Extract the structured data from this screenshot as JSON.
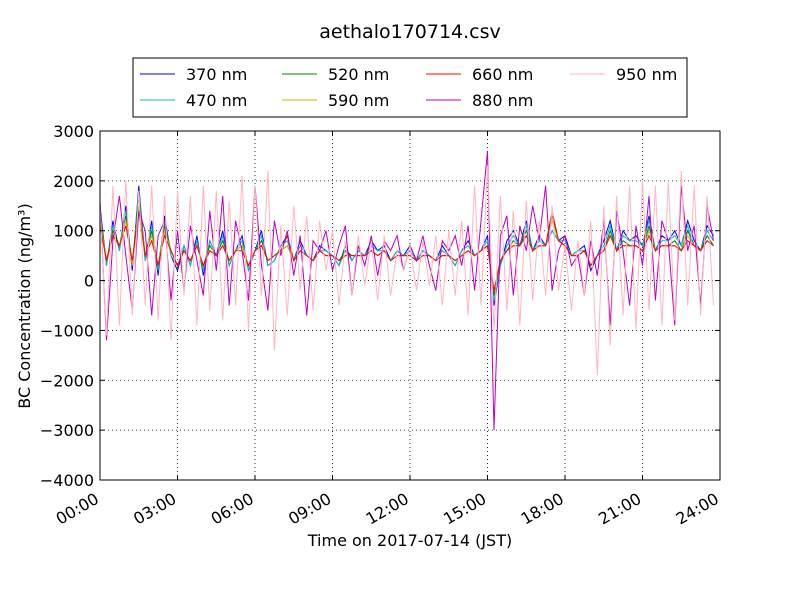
{
  "chart_data": {
    "type": "line",
    "title": "aethalo170714.csv",
    "xlabel": "Time on 2017-07-14 (JST)",
    "ylabel": "BC Concentration (ng/m³)",
    "xlim": [
      "00:00",
      "24:00"
    ],
    "ylim": [
      -4000,
      3000
    ],
    "x_ticks": [
      "00:00",
      "03:00",
      "06:00",
      "09:00",
      "12:00",
      "15:00",
      "18:00",
      "21:00",
      "24:00"
    ],
    "y_ticks": [
      -4000,
      -3000,
      -2000,
      -1000,
      0,
      1000,
      2000,
      3000
    ],
    "grid": true,
    "legend_position": "top-center",
    "x_hours": [
      0,
      0.25,
      0.5,
      0.75,
      1,
      1.25,
      1.5,
      1.75,
      2,
      2.25,
      2.5,
      2.75,
      3,
      3.25,
      3.5,
      3.75,
      4,
      4.25,
      4.5,
      4.75,
      5,
      5.25,
      5.5,
      5.75,
      6,
      6.25,
      6.5,
      6.75,
      7,
      7.25,
      7.5,
      7.75,
      8,
      8.25,
      8.5,
      8.75,
      9,
      9.25,
      9.5,
      9.75,
      10,
      10.25,
      10.5,
      10.75,
      11,
      11.25,
      11.5,
      11.75,
      12,
      12.25,
      12.5,
      12.75,
      13,
      13.25,
      13.5,
      13.75,
      14,
      14.25,
      14.5,
      14.75,
      15,
      15.25,
      15.5,
      15.75,
      16,
      16.25,
      16.5,
      16.75,
      17,
      17.25,
      17.5,
      17.75,
      18,
      18.25,
      18.5,
      18.75,
      19,
      19.25,
      19.5,
      19.75,
      20,
      20.25,
      20.5,
      20.75,
      21,
      21.25,
      21.5,
      21.75,
      22,
      22.25,
      22.5,
      22.75,
      23,
      23.25,
      23.5,
      23.75
    ],
    "series": [
      {
        "name": "370 nm",
        "color": "#0000ff",
        "values": [
          1500,
          300,
          1200,
          600,
          1500,
          200,
          1900,
          400,
          1200,
          100,
          1300,
          500,
          200,
          700,
          300,
          900,
          100,
          800,
          500,
          1000,
          300,
          600,
          900,
          200,
          600,
          1000,
          300,
          400,
          700,
          900,
          400,
          800,
          500,
          400,
          700,
          600,
          500,
          300,
          700,
          400,
          600,
          500,
          800,
          600,
          700,
          400,
          600,
          500,
          700,
          400,
          600,
          500,
          400,
          700,
          500,
          300,
          600,
          800,
          500,
          600,
          900,
          -500,
          300,
          800,
          1000,
          700,
          1200,
          600,
          900,
          700,
          1000,
          800,
          900,
          500,
          600,
          700,
          200,
          500,
          800,
          1200,
          600,
          1000,
          800,
          900,
          700,
          1300,
          600,
          900,
          800,
          1000,
          700,
          1200,
          800,
          600,
          1100,
          900
        ]
      },
      {
        "name": "470 nm",
        "color": "#00bfbf",
        "values": [
          1400,
          300,
          1100,
          600,
          1400,
          300,
          1800,
          400,
          1100,
          200,
          1200,
          500,
          300,
          700,
          300,
          800,
          200,
          800,
          500,
          900,
          300,
          600,
          800,
          200,
          600,
          900,
          300,
          400,
          700,
          800,
          400,
          700,
          500,
          400,
          600,
          600,
          500,
          300,
          600,
          400,
          600,
          500,
          700,
          600,
          600,
          400,
          600,
          500,
          600,
          400,
          600,
          500,
          400,
          600,
          500,
          300,
          600,
          700,
          500,
          600,
          800,
          -400,
          300,
          700,
          900,
          700,
          1100,
          600,
          800,
          700,
          1000,
          800,
          800,
          500,
          600,
          600,
          300,
          500,
          700,
          1100,
          600,
          900,
          800,
          800,
          700,
          1200,
          600,
          800,
          800,
          900,
          700,
          1100,
          700,
          600,
          1000,
          800
        ]
      },
      {
        "name": "520 nm",
        "color": "#008000",
        "values": [
          1300,
          400,
          1000,
          700,
          1300,
          300,
          1700,
          500,
          1000,
          300,
          1100,
          600,
          300,
          600,
          400,
          700,
          300,
          700,
          500,
          800,
          400,
          600,
          700,
          300,
          600,
          800,
          400,
          500,
          600,
          700,
          400,
          600,
          500,
          400,
          600,
          500,
          500,
          400,
          600,
          500,
          500,
          500,
          600,
          500,
          600,
          400,
          500,
          500,
          500,
          400,
          500,
          500,
          400,
          500,
          500,
          400,
          500,
          600,
          500,
          600,
          700,
          -300,
          400,
          600,
          800,
          700,
          1000,
          600,
          700,
          700,
          1300,
          800,
          700,
          500,
          500,
          600,
          300,
          500,
          600,
          1000,
          600,
          800,
          700,
          700,
          600,
          1100,
          600,
          700,
          700,
          800,
          600,
          1000,
          700,
          600,
          900,
          700
        ]
      },
      {
        "name": "590 nm",
        "color": "#bfbf00",
        "values": [
          1200,
          400,
          900,
          700,
          1200,
          300,
          1500,
          500,
          900,
          300,
          1000,
          600,
          300,
          600,
          400,
          700,
          300,
          600,
          500,
          700,
          400,
          600,
          700,
          300,
          600,
          700,
          400,
          500,
          600,
          700,
          400,
          600,
          500,
          400,
          600,
          500,
          500,
          400,
          500,
          500,
          500,
          500,
          600,
          500,
          600,
          400,
          500,
          500,
          500,
          400,
          500,
          500,
          400,
          500,
          500,
          400,
          500,
          600,
          500,
          600,
          700,
          -200,
          400,
          600,
          700,
          700,
          900,
          600,
          700,
          700,
          1200,
          800,
          700,
          500,
          500,
          600,
          300,
          500,
          600,
          900,
          600,
          700,
          700,
          700,
          600,
          1000,
          600,
          700,
          700,
          700,
          600,
          900,
          700,
          600,
          800,
          700
        ]
      },
      {
        "name": "660 nm",
        "color": "#ff0000",
        "values": [
          1100,
          400,
          900,
          700,
          1100,
          400,
          1400,
          500,
          800,
          300,
          900,
          600,
          300,
          600,
          400,
          700,
          300,
          600,
          500,
          700,
          400,
          600,
          600,
          300,
          600,
          700,
          400,
          500,
          600,
          900,
          400,
          600,
          500,
          400,
          600,
          500,
          500,
          400,
          500,
          500,
          500,
          500,
          600,
          500,
          600,
          400,
          500,
          500,
          500,
          400,
          500,
          500,
          400,
          500,
          500,
          400,
          500,
          600,
          500,
          600,
          700,
          -200,
          400,
          600,
          700,
          700,
          900,
          600,
          700,
          700,
          1400,
          800,
          700,
          500,
          500,
          600,
          300,
          500,
          600,
          900,
          600,
          700,
          700,
          700,
          600,
          900,
          600,
          700,
          700,
          700,
          600,
          800,
          700,
          600,
          800,
          700
        ]
      },
      {
        "name": "880 nm",
        "color": "#bf00bf",
        "values": [
          1600,
          -1200,
          800,
          1700,
          500,
          -600,
          1400,
          1000,
          -700,
          900,
          1200,
          -400,
          1000,
          -200,
          1100,
          400,
          -300,
          1400,
          200,
          1700,
          -500,
          1200,
          600,
          -400,
          1900,
          300,
          -600,
          1200,
          500,
          1000,
          100,
          900,
          -700,
          800,
          600,
          1000,
          200,
          700,
          1100,
          -300,
          700,
          300,
          900,
          100,
          800,
          600,
          900,
          200,
          700,
          400,
          900,
          300,
          -200,
          800,
          600,
          900,
          300,
          1100,
          -200,
          1200,
          2600,
          -3000,
          900,
          1300,
          -300,
          1100,
          600,
          1500,
          800,
          1900,
          -200,
          600,
          900,
          300,
          500,
          -300,
          800,
          100,
          1200,
          -900,
          1400,
          600,
          -500,
          1100,
          300,
          1700,
          -400,
          1200,
          800,
          -900,
          1900,
          600,
          1100,
          -500,
          1500,
          800
        ]
      },
      {
        "name": "950 nm",
        "color": "#ffb6c1",
        "values": [
          1500,
          -1100,
          1900,
          -900,
          2000,
          -700,
          1800,
          -500,
          1900,
          -800,
          1700,
          -1200,
          1800,
          -300,
          1700,
          -900,
          1900,
          -600,
          1800,
          -800,
          1600,
          -500,
          2100,
          -1000,
          1900,
          -300,
          2200,
          -1400,
          1100,
          -700,
          1500,
          -200,
          1300,
          -600,
          1200,
          200,
          1000,
          -500,
          800,
          -300,
          900,
          -100,
          800,
          -400,
          900,
          -300,
          600,
          200,
          700,
          -200,
          800,
          -100,
          900,
          -500,
          1000,
          -300,
          1200,
          -700,
          1900,
          -500,
          2300,
          -1000,
          1700,
          -600,
          1400,
          -900,
          1600,
          -400,
          1200,
          -300,
          1500,
          -200,
          700,
          -600,
          800,
          -300,
          1200,
          -1900,
          1500,
          -1300,
          1700,
          -700,
          1900,
          -1000,
          2000,
          -600,
          1900,
          -900,
          2000,
          -800,
          2200,
          -500,
          1900,
          -700,
          1700,
          -500
        ]
      }
    ]
  }
}
